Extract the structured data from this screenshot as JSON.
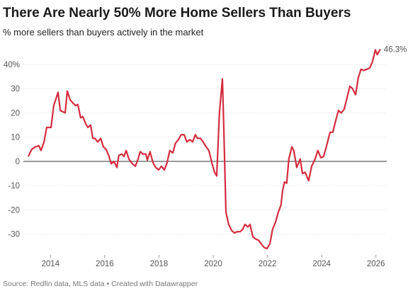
{
  "chart_data": {
    "type": "line",
    "title": "There Are Nearly 50% More Home Sellers Than Buyers",
    "subtitle": "% more sellers than buyers actively in the market",
    "source": "Source: Redfin data, MLS data • Created with Datawrapper",
    "x": [
      2013.18,
      2013.31,
      2013.44,
      2013.57,
      2013.65,
      2013.76,
      2013.86,
      2014.02,
      2014.12,
      2014.28,
      2014.36,
      2014.54,
      2014.62,
      2014.72,
      2014.83,
      2014.93,
      2015.01,
      2015.11,
      2015.19,
      2015.3,
      2015.38,
      2015.48,
      2015.56,
      2015.64,
      2015.74,
      2015.85,
      2015.95,
      2016.05,
      2016.16,
      2016.24,
      2016.34,
      2016.45,
      2016.52,
      2016.63,
      2016.71,
      2016.79,
      2016.89,
      2017.02,
      2017.13,
      2017.23,
      2017.31,
      2017.41,
      2017.52,
      2017.57,
      2017.67,
      2017.78,
      2017.88,
      2017.99,
      2018.09,
      2018.2,
      2018.3,
      2018.4,
      2018.51,
      2018.61,
      2018.72,
      2018.82,
      2018.93,
      2019.03,
      2019.14,
      2019.24,
      2019.34,
      2019.42,
      2019.53,
      2019.63,
      2019.74,
      2019.84,
      2019.95,
      2020.05,
      2020.13,
      2020.23,
      2020.34,
      2020.39,
      2020.47,
      2020.57,
      2020.68,
      2020.78,
      2020.89,
      2020.99,
      2021.09,
      2021.17,
      2021.28,
      2021.36,
      2021.46,
      2021.56,
      2021.67,
      2021.77,
      2021.88,
      2021.98,
      2022.09,
      2022.19,
      2022.3,
      2022.4,
      2022.5,
      2022.56,
      2022.63,
      2022.71,
      2022.79,
      2022.9,
      2022.97,
      2023.08,
      2023.21,
      2023.29,
      2023.39,
      2023.52,
      2023.63,
      2023.76,
      2023.86,
      2023.97,
      2024.07,
      2024.17,
      2024.31,
      2024.41,
      2024.51,
      2024.62,
      2024.72,
      2024.83,
      2024.93,
      2025.04,
      2025.14,
      2025.25,
      2025.35,
      2025.45,
      2025.56,
      2025.66,
      2025.77,
      2025.87,
      2025.98,
      2026.05,
      2026.16
    ],
    "series": [
      {
        "name": "% more sellers than buyers",
        "color": "#d42c3f",
        "end_label": "46.3%",
        "values": [
          2,
          5,
          6,
          6.5,
          4.5,
          8,
          14,
          14,
          23,
          28.5,
          21,
          20,
          29,
          25.5,
          24,
          23,
          23.5,
          18,
          18.5,
          15.5,
          14,
          15,
          9.5,
          9.5,
          8,
          9.5,
          6,
          5,
          2,
          -1,
          0,
          -2.5,
          2.5,
          3,
          2,
          4.5,
          1,
          -1,
          -2,
          1,
          4,
          3,
          3,
          0.5,
          4,
          -0.5,
          -2.5,
          -3.5,
          -2,
          -3.5,
          -0.5,
          4.5,
          3.5,
          7.5,
          9,
          11,
          11,
          8,
          9,
          8,
          11,
          9.5,
          9.5,
          8,
          6,
          4.5,
          -0.5,
          -4.5,
          -6,
          20,
          34,
          14,
          -21,
          -26,
          -28.5,
          -29.5,
          -29,
          -29,
          -28,
          -26,
          -27,
          -26,
          -31,
          -32,
          -32.5,
          -34,
          -35.5,
          -36,
          -34,
          -28,
          -25,
          -21,
          -18,
          -12,
          -8.5,
          -9,
          1,
          6,
          4.5,
          -2.5,
          1,
          -5,
          -4.5,
          -8,
          -2,
          1,
          4.5,
          1.5,
          2,
          6,
          12,
          12,
          16.5,
          21,
          20,
          21.5,
          26,
          31,
          30,
          27.5,
          34.5,
          38,
          37.5,
          38,
          38.5,
          41,
          46,
          44,
          46.3
        ]
      }
    ],
    "xlim": [
      2013,
      2026.4
    ],
    "xticks": [
      2014,
      2016,
      2018,
      2020,
      2022,
      2024,
      2026
    ],
    "ylim": [
      -38,
      47
    ],
    "yticks": [
      -30,
      -20,
      -10,
      0,
      10,
      20,
      30,
      {
        "value": 40,
        "label": "40%"
      }
    ],
    "grid": true
  }
}
